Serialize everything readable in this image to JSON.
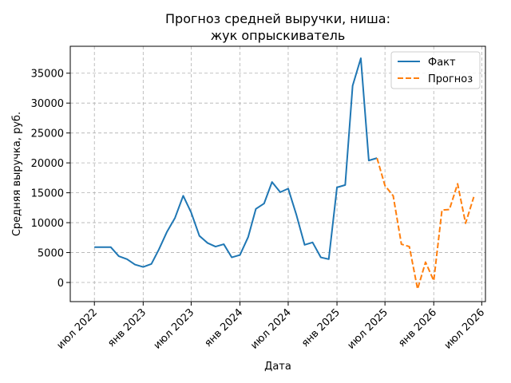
{
  "chart_data": {
    "type": "line",
    "title_lines": [
      "Прогноз средней выручки, ниша:",
      "жук опрыскиватель"
    ],
    "xlabel": "Дата",
    "ylabel": "Средняя выручка, руб.",
    "xlim": [
      "2022-04-01",
      "2026-07-15"
    ],
    "ylim": [
      -3200,
      39500
    ],
    "x_ticks": [
      {
        "date": "2022-07-01",
        "label": "июл 2022"
      },
      {
        "date": "2023-01-01",
        "label": "янв 2023"
      },
      {
        "date": "2023-07-01",
        "label": "июл 2023"
      },
      {
        "date": "2024-01-01",
        "label": "янв 2024"
      },
      {
        "date": "2024-07-01",
        "label": "июл 2024"
      },
      {
        "date": "2025-01-01",
        "label": "янв 2025"
      },
      {
        "date": "2025-07-01",
        "label": "июл 2025"
      },
      {
        "date": "2026-01-01",
        "label": "янв 2026"
      },
      {
        "date": "2026-07-01",
        "label": "июл 2026"
      }
    ],
    "y_ticks": [
      {
        "value": 0,
        "label": "0"
      },
      {
        "value": 5000,
        "label": "5000"
      },
      {
        "value": 10000,
        "label": "10000"
      },
      {
        "value": 15000,
        "label": "15000"
      },
      {
        "value": 20000,
        "label": "20000"
      },
      {
        "value": 25000,
        "label": "25000"
      },
      {
        "value": 30000,
        "label": "30000"
      },
      {
        "value": 35000,
        "label": "35000"
      }
    ],
    "grid": true,
    "legend_position": "top-right",
    "series": [
      {
        "name": "Факт",
        "color": "#1f77b4",
        "style": "solid",
        "points": [
          [
            "2022-07-01",
            5900
          ],
          [
            "2022-08-01",
            5900
          ],
          [
            "2022-09-01",
            5900
          ],
          [
            "2022-10-01",
            4400
          ],
          [
            "2022-11-01",
            3900
          ],
          [
            "2022-12-01",
            3000
          ],
          [
            "2023-01-01",
            2600
          ],
          [
            "2023-02-01",
            3100
          ],
          [
            "2023-03-01",
            5500
          ],
          [
            "2023-04-01",
            8500
          ],
          [
            "2023-05-01",
            10800
          ],
          [
            "2023-06-01",
            14500
          ],
          [
            "2023-07-01",
            11700
          ],
          [
            "2023-08-01",
            7800
          ],
          [
            "2023-09-01",
            6600
          ],
          [
            "2023-10-01",
            6000
          ],
          [
            "2023-11-01",
            6400
          ],
          [
            "2023-12-01",
            4200
          ],
          [
            "2024-01-01",
            4600
          ],
          [
            "2024-02-01",
            7600
          ],
          [
            "2024-03-01",
            12300
          ],
          [
            "2024-04-01",
            13200
          ],
          [
            "2024-05-01",
            16800
          ],
          [
            "2024-06-01",
            15100
          ],
          [
            "2024-07-01",
            15700
          ],
          [
            "2024-08-01",
            11300
          ],
          [
            "2024-09-01",
            6300
          ],
          [
            "2024-10-01",
            6700
          ],
          [
            "2024-11-01",
            4200
          ],
          [
            "2024-12-01",
            3900
          ],
          [
            "2025-01-01",
            15900
          ],
          [
            "2025-02-01",
            16300
          ],
          [
            "2025-03-01",
            32900
          ],
          [
            "2025-04-01",
            37500
          ],
          [
            "2025-05-01",
            20400
          ],
          [
            "2025-06-01",
            20800
          ]
        ]
      },
      {
        "name": "Прогноз",
        "color": "#ff7f0e",
        "style": "dashed",
        "points": [
          [
            "2025-06-01",
            20800
          ],
          [
            "2025-07-01",
            16200
          ],
          [
            "2025-08-01",
            14500
          ],
          [
            "2025-09-01",
            6400
          ],
          [
            "2025-10-01",
            6000
          ],
          [
            "2025-11-01",
            -1100
          ],
          [
            "2025-12-01",
            3400
          ],
          [
            "2026-01-01",
            300
          ],
          [
            "2026-02-01",
            12100
          ],
          [
            "2026-03-01",
            12200
          ],
          [
            "2026-04-01",
            16500
          ],
          [
            "2026-05-01",
            9900
          ],
          [
            "2026-06-01",
            14300
          ]
        ]
      }
    ]
  }
}
